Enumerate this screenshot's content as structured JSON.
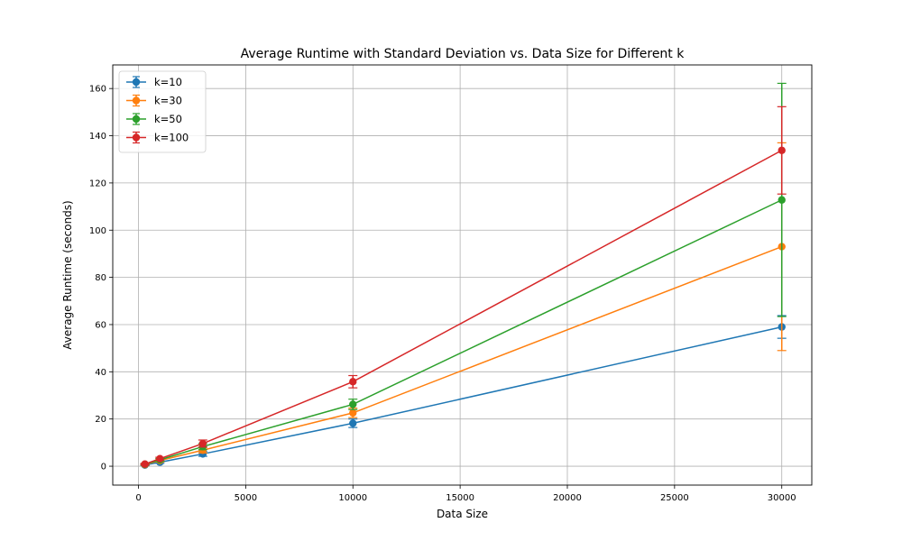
{
  "chart_data": {
    "type": "line",
    "title": "Average Runtime with Standard Deviation vs. Data Size for Different k",
    "xlabel": "Data Size",
    "ylabel": "Average Runtime (seconds)",
    "xlim": [
      -1200,
      31400
    ],
    "ylim": [
      -8,
      170
    ],
    "xticks": [
      0,
      5000,
      10000,
      15000,
      20000,
      25000,
      30000
    ],
    "yticks": [
      0,
      20,
      40,
      60,
      80,
      100,
      120,
      140,
      160
    ],
    "grid": true,
    "legend_position": "top-left",
    "x": [
      300,
      1000,
      3000,
      10000,
      30000
    ],
    "series": [
      {
        "name": "k=10",
        "color": "#1f77b4",
        "values": [
          0.5,
          1.7,
          5.2,
          18.2,
          59.0
        ],
        "error": [
          0.3,
          0.5,
          1.0,
          1.8,
          4.8
        ]
      },
      {
        "name": "k=30",
        "color": "#ff7f0e",
        "values": [
          0.7,
          2.4,
          6.8,
          22.6,
          93.0
        ],
        "error": [
          0.3,
          0.6,
          1.2,
          2.0,
          44.0
        ]
      },
      {
        "name": "k=50",
        "color": "#2ca02c",
        "values": [
          0.8,
          2.7,
          8.3,
          26.2,
          112.8
        ],
        "error": [
          0.3,
          0.6,
          1.3,
          2.2,
          49.4
        ]
      },
      {
        "name": "k=100",
        "color": "#d62728",
        "values": [
          0.9,
          3.2,
          9.6,
          35.8,
          133.8
        ],
        "error": [
          0.3,
          0.6,
          1.5,
          2.6,
          18.5
        ]
      }
    ]
  }
}
